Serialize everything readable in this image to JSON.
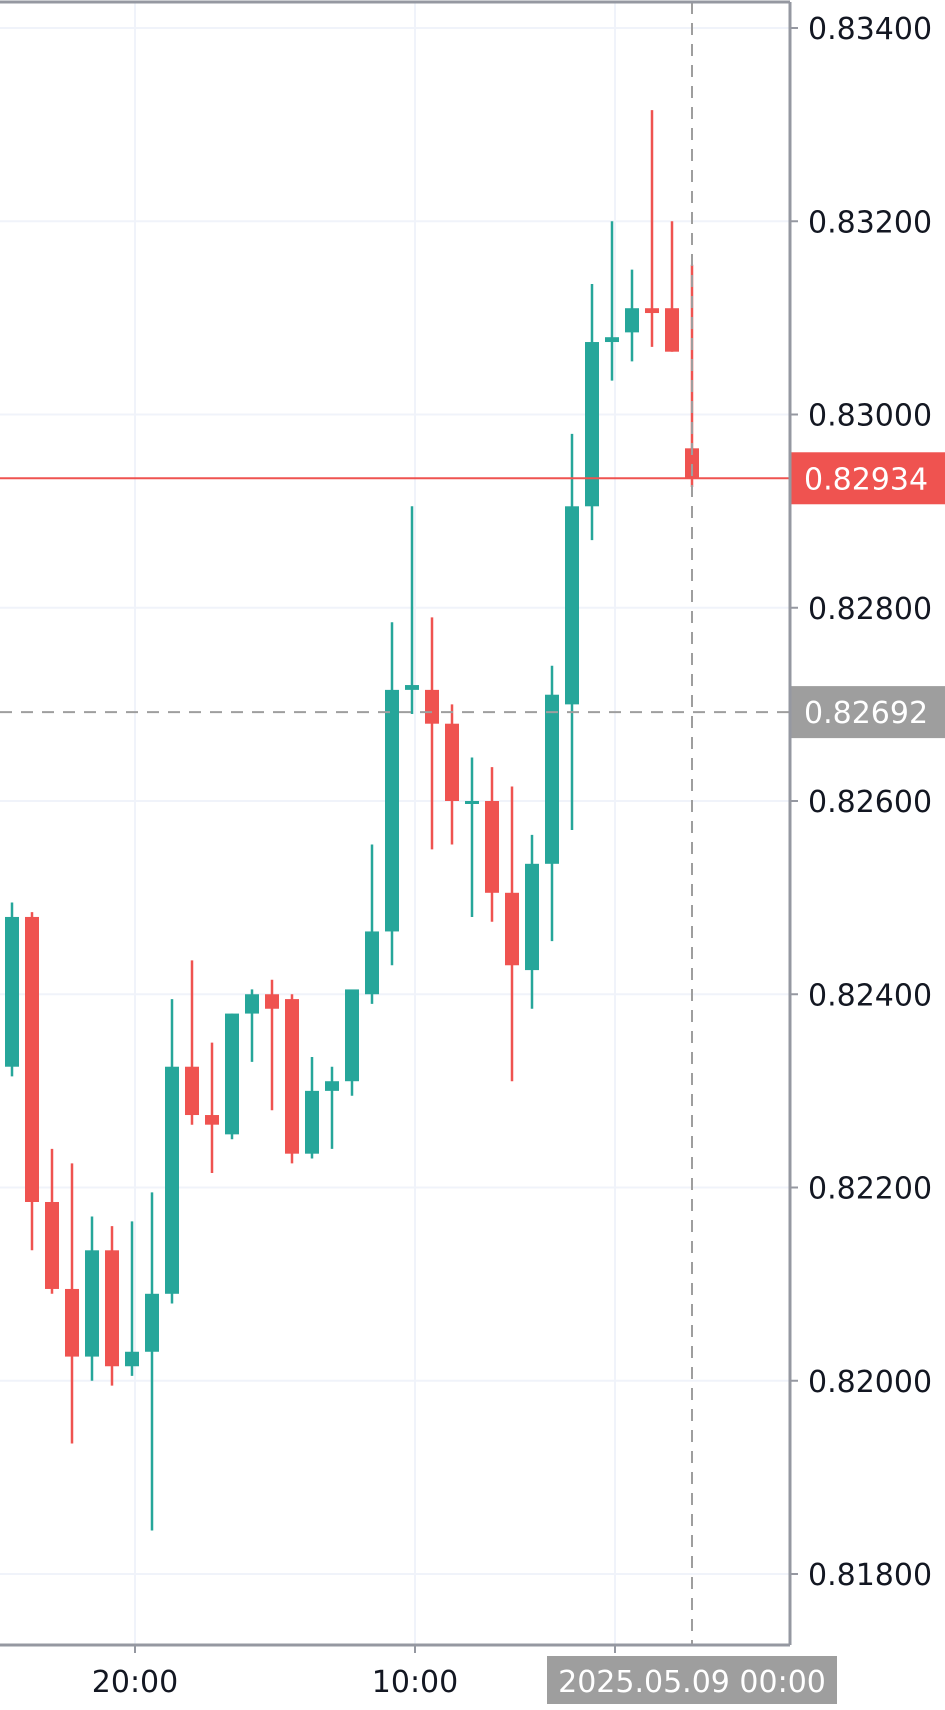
{
  "chart_data": {
    "type": "candlestick",
    "y_ticks": [
      "0.83400",
      "0.83200",
      "0.83000",
      "0.82800",
      "0.82600",
      "0.82400",
      "0.82200",
      "0.82000",
      "0.81800"
    ],
    "x_ticks": [
      "20:00",
      "10:00"
    ],
    "ylim": [
      0.8171,
      0.8342
    ],
    "current_price": {
      "label": "0.82934",
      "value": 0.82934
    },
    "crosshair": {
      "price_label": "0.82692",
      "value": 0.82692,
      "time_label": "2025.05.09 00:00"
    },
    "grid": true,
    "colors": {
      "up": "#26a69a",
      "down": "#ef5350",
      "grid": "#f0f3fa",
      "axis": "#9598a1",
      "crosshair": "#9e9e9e"
    },
    "candles": [
      {
        "o": 0.82325,
        "h": 0.82495,
        "l": 0.82315,
        "c": 0.8248
      },
      {
        "o": 0.8248,
        "h": 0.82485,
        "l": 0.82135,
        "c": 0.82185
      },
      {
        "o": 0.82185,
        "h": 0.8224,
        "l": 0.8209,
        "c": 0.82095
      },
      {
        "o": 0.82095,
        "h": 0.82225,
        "l": 0.81935,
        "c": 0.82025
      },
      {
        "o": 0.82025,
        "h": 0.8217,
        "l": 0.82,
        "c": 0.82135
      },
      {
        "o": 0.82135,
        "h": 0.8216,
        "l": 0.81995,
        "c": 0.82015
      },
      {
        "o": 0.82015,
        "h": 0.82165,
        "l": 0.82005,
        "c": 0.8203
      },
      {
        "o": 0.8203,
        "h": 0.82195,
        "l": 0.81845,
        "c": 0.8209
      },
      {
        "o": 0.8209,
        "h": 0.82395,
        "l": 0.8208,
        "c": 0.82325
      },
      {
        "o": 0.82325,
        "h": 0.82435,
        "l": 0.82265,
        "c": 0.82275
      },
      {
        "o": 0.82275,
        "h": 0.8235,
        "l": 0.82215,
        "c": 0.82265
      },
      {
        "o": 0.82255,
        "h": 0.8238,
        "l": 0.8225,
        "c": 0.8238
      },
      {
        "o": 0.8238,
        "h": 0.82405,
        "l": 0.8233,
        "c": 0.824
      },
      {
        "o": 0.824,
        "h": 0.82415,
        "l": 0.8228,
        "c": 0.82385
      },
      {
        "o": 0.82395,
        "h": 0.824,
        "l": 0.82225,
        "c": 0.82235
      },
      {
        "o": 0.82235,
        "h": 0.82335,
        "l": 0.8223,
        "c": 0.823
      },
      {
        "o": 0.823,
        "h": 0.82325,
        "l": 0.8224,
        "c": 0.8231
      },
      {
        "o": 0.8231,
        "h": 0.824,
        "l": 0.82295,
        "c": 0.82405
      },
      {
        "o": 0.824,
        "h": 0.82555,
        "l": 0.8239,
        "c": 0.82465
      },
      {
        "o": 0.82465,
        "h": 0.82785,
        "l": 0.8243,
        "c": 0.82715
      },
      {
        "o": 0.82715,
        "h": 0.82905,
        "l": 0.8269,
        "c": 0.8272
      },
      {
        "o": 0.82715,
        "h": 0.8279,
        "l": 0.8255,
        "c": 0.8268
      },
      {
        "o": 0.8268,
        "h": 0.827,
        "l": 0.82555,
        "c": 0.826
      },
      {
        "o": 0.826,
        "h": 0.82645,
        "l": 0.8248,
        "c": 0.826
      },
      {
        "o": 0.826,
        "h": 0.82635,
        "l": 0.82475,
        "c": 0.82505
      },
      {
        "o": 0.82505,
        "h": 0.82615,
        "l": 0.8231,
        "c": 0.8243
      },
      {
        "o": 0.82425,
        "h": 0.82565,
        "l": 0.82385,
        "c": 0.82535
      },
      {
        "o": 0.82535,
        "h": 0.8274,
        "l": 0.82455,
        "c": 0.8271
      },
      {
        "o": 0.827,
        "h": 0.8298,
        "l": 0.8257,
        "c": 0.82905
      },
      {
        "o": 0.82905,
        "h": 0.83135,
        "l": 0.8287,
        "c": 0.83075
      },
      {
        "o": 0.83075,
        "h": 0.832,
        "l": 0.83035,
        "c": 0.8308
      },
      {
        "o": 0.83085,
        "h": 0.8315,
        "l": 0.83055,
        "c": 0.8311
      },
      {
        "o": 0.8311,
        "h": 0.83315,
        "l": 0.8307,
        "c": 0.83105
      },
      {
        "o": 0.8311,
        "h": 0.832,
        "l": 0.83065,
        "c": 0.83065
      },
      {
        "o": 0.82965,
        "h": 0.83155,
        "l": 0.82925,
        "c": 0.82934
      }
    ]
  }
}
